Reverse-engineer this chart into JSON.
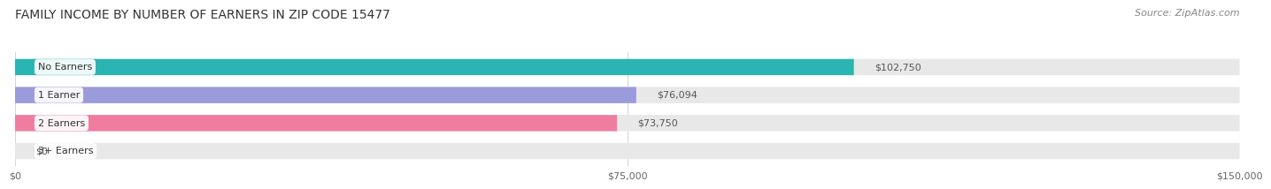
{
  "title": "FAMILY INCOME BY NUMBER OF EARNERS IN ZIP CODE 15477",
  "source": "Source: ZipAtlas.com",
  "categories": [
    "No Earners",
    "1 Earner",
    "2 Earners",
    "3+ Earners"
  ],
  "values": [
    102750,
    76094,
    73750,
    0
  ],
  "value_labels": [
    "$102,750",
    "$76,094",
    "$73,750",
    "$0"
  ],
  "bar_colors": [
    "#2ab5b2",
    "#9b9bdb",
    "#f07da0",
    "#f5d9a8"
  ],
  "bar_bg_color": "#e8e8e8",
  "xlim": [
    0,
    150000
  ],
  "xtick_values": [
    0,
    75000,
    150000
  ],
  "xtick_labels": [
    "$0",
    "$75,000",
    "$150,000"
  ],
  "title_fontsize": 10,
  "source_fontsize": 8,
  "bar_height": 0.58,
  "fig_bg_color": "#ffffff",
  "label_color": "#555555",
  "title_color": "#333333"
}
